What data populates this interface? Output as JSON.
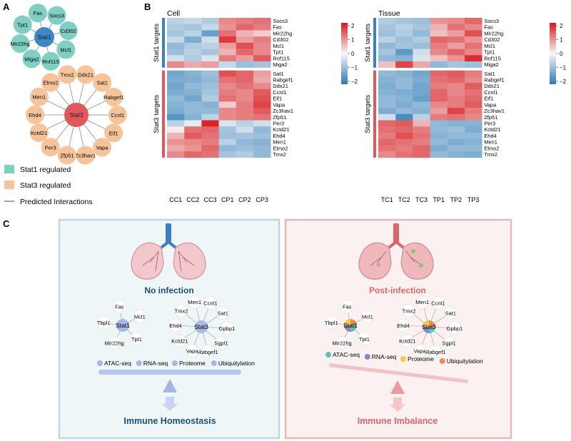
{
  "panel_labels": {
    "a": "A",
    "b": "B",
    "c": "C"
  },
  "network_a": {
    "stat1_hub": "Stat1",
    "stat1_nodes": [
      "Socs3",
      "Cd302",
      "Mcl1",
      "Rnf115",
      "Miga2",
      "Mir22hg",
      "Tpt1",
      "Fas"
    ],
    "stat3_hub": "Stat3",
    "stat3_nodes": [
      "Ddx21",
      "Sat1",
      "Rabgef1",
      "Ccnl1",
      "Eif1",
      "Vapa",
      "Zc3hav1",
      "Zfp51",
      "Per3",
      "Kctd21",
      "Ehd4",
      "Men1",
      "Elmo2",
      "Tmx2"
    ],
    "legend": {
      "stat1_regulated": "Stat1 regulated",
      "stat3_regulated": "Stat3 regulated",
      "predicted_interactions": "Predicted Interactions"
    },
    "colors": {
      "stat1_node": "#7fcfc2",
      "stat1_hub": "#3f86c5",
      "stat3_node": "#f6c49b",
      "stat3_hub": "#e0575c"
    }
  },
  "heatmaps": {
    "row_group_labels": {
      "stat1": "Stat1 targets",
      "stat3": "Stat3 targets"
    },
    "stat1_genes": [
      "Socs3",
      "Fas",
      "Mir22hg",
      "Cd302",
      "Mcl1",
      "Tpt1",
      "Rnf115",
      "Miga2"
    ],
    "stat3_genes": [
      "Sat1",
      "Rabgef1",
      "Ddx21",
      "Ccnl1",
      "Eif1",
      "Vapa",
      "Zc3hav1",
      "Zfp51",
      "Per3",
      "Kctd21",
      "Ehd4",
      "Men1",
      "Elmo2",
      "Tmx2"
    ],
    "colorbar_ticks": [
      "2",
      "1",
      "0",
      "−1",
      "−2"
    ],
    "cell": {
      "title": "Cell",
      "columns": [
        "CC1",
        "CC2",
        "CC3",
        "CP1",
        "CP2",
        "CP3"
      ],
      "values": [
        [
          -0.6,
          -0.5,
          -0.7,
          1.0,
          1.1,
          1.2
        ],
        [
          -0.7,
          -0.8,
          -0.5,
          0.9,
          1.3,
          1.1
        ],
        [
          -0.8,
          -0.6,
          -1.4,
          1.2,
          0.6,
          0.4
        ],
        [
          -0.5,
          -1.2,
          -0.4,
          1.7,
          0.8,
          1.1
        ],
        [
          -1.0,
          -0.7,
          -0.6,
          0.8,
          1.5,
          1.0
        ],
        [
          -0.9,
          -0.6,
          -0.8,
          0.6,
          1.3,
          1.0
        ],
        [
          -0.4,
          -0.7,
          -0.3,
          1.1,
          0.8,
          1.4
        ],
        [
          1.0,
          0.7,
          0.8,
          -0.5,
          -0.9,
          -0.8
        ],
        [
          -1.3,
          -1.1,
          -0.9,
          1.5,
          1.3,
          0.8
        ],
        [
          -1.2,
          -1.2,
          -1.0,
          1.2,
          1.3,
          0.7
        ],
        [
          -1.3,
          -1.0,
          -0.9,
          1.0,
          1.2,
          1.0
        ],
        [
          -1.2,
          -1.1,
          -0.8,
          1.1,
          1.0,
          1.4
        ],
        [
          -1.0,
          -1.3,
          -0.7,
          1.2,
          1.0,
          1.5
        ],
        [
          -1.1,
          -1.0,
          -1.1,
          0.4,
          1.1,
          1.6
        ],
        [
          -1.2,
          -1.0,
          -1.0,
          1.0,
          1.1,
          1.4
        ],
        [
          -1.6,
          -1.1,
          -0.6,
          1.0,
          1.1,
          1.2
        ],
        [
          -0.6,
          -0.2,
          1.9,
          -0.3,
          -0.6,
          -0.4
        ],
        [
          0.1,
          1.2,
          1.3,
          -0.8,
          -0.4,
          -1.0
        ],
        [
          0.6,
          1.4,
          1.2,
          -0.9,
          -0.8,
          -0.9
        ],
        [
          0.9,
          1.0,
          1.1,
          -0.6,
          -1.0,
          -1.1
        ],
        [
          0.7,
          0.9,
          1.3,
          -1.0,
          -0.9,
          -1.0
        ],
        [
          1.0,
          1.3,
          1.2,
          -0.8,
          -0.7,
          -1.0
        ]
      ]
    },
    "tissue": {
      "title": "Tissue",
      "columns": [
        "TC1",
        "TC2",
        "TC3",
        "TP1",
        "TP2",
        "TP3"
      ],
      "values": [
        [
          -0.7,
          -0.8,
          -0.9,
          0.9,
          1.0,
          1.3
        ],
        [
          -0.8,
          -0.6,
          -0.8,
          0.6,
          1.2,
          1.0
        ],
        [
          -0.9,
          -0.7,
          -1.0,
          0.5,
          0.8,
          1.5
        ],
        [
          -0.6,
          -0.9,
          -0.7,
          1.3,
          1.2,
          0.9
        ],
        [
          -1.0,
          -0.8,
          -0.9,
          1.1,
          0.8,
          1.2
        ],
        [
          -0.8,
          -1.5,
          -0.4,
          1.0,
          1.3,
          1.0
        ],
        [
          -1.0,
          -1.1,
          -0.3,
          0.5,
          0.9,
          1.8
        ],
        [
          0.5,
          1.6,
          0.7,
          -1.0,
          -0.8,
          -0.9
        ],
        [
          -1.0,
          -1.1,
          -1.3,
          1.3,
          1.4,
          1.1
        ],
        [
          -1.1,
          -1.0,
          -1.2,
          1.2,
          1.3,
          1.0
        ],
        [
          -1.2,
          -1.0,
          -1.3,
          1.1,
          1.0,
          1.4
        ],
        [
          -1.1,
          -1.2,
          -1.3,
          1.3,
          1.0,
          1.2
        ],
        [
          -1.0,
          -1.1,
          -1.4,
          1.3,
          1.1,
          1.3
        ],
        [
          -1.0,
          -1.2,
          -1.0,
          1.0,
          1.1,
          1.4
        ],
        [
          -1.2,
          -1.0,
          -1.1,
          0.8,
          1.6,
          1.1
        ],
        [
          -0.4,
          -1.7,
          -0.6,
          1.1,
          1.2,
          1.0
        ],
        [
          1.3,
          1.4,
          0.6,
          -1.0,
          -1.1,
          -1.1
        ],
        [
          1.2,
          1.3,
          1.1,
          -1.0,
          -0.9,
          -1.2
        ],
        [
          1.1,
          1.5,
          1.2,
          -1.1,
          -1.0,
          -1.0
        ],
        [
          1.3,
          1.2,
          1.1,
          -1.0,
          -1.2,
          -1.1
        ],
        [
          1.2,
          1.1,
          1.3,
          -1.2,
          -1.0,
          -1.0
        ],
        [
          1.0,
          1.2,
          1.3,
          -1.0,
          -1.1,
          -1.2
        ]
      ]
    }
  },
  "panel_c": {
    "left": {
      "title": "No infection",
      "stat1_hub": "Stat1",
      "stat1_nodes": [
        "Fas",
        "Mcl1",
        "Tpt1",
        "Mir22hg",
        "Tbpl1"
      ],
      "stat3_hub": "Stat3",
      "stat3_nodes": [
        "Men1",
        "Ccnl1",
        "Sat1",
        "Gpbp1",
        "Sgpl1",
        "Rabgef1",
        "Vapa",
        "Kctd21",
        "Ehd4",
        "Tmx2"
      ],
      "legend": [
        "ATAC-seq",
        "RNA-seq",
        "Proteome",
        "Ubiquitylation"
      ],
      "outcome": "Immune Homeostasis",
      "colors": {
        "frame": "#bcd8e0",
        "bg": "#eef6f8",
        "title": "#1f4e79",
        "dot": "#a9b6e6",
        "bar": "#b7c6ee"
      }
    },
    "right": {
      "title": "Post-infection",
      "stat1_hub": "Stat1",
      "stat1_nodes": [
        "Fas",
        "Mcl1",
        "Tpt1",
        "Mir22hg",
        "Tbpl1"
      ],
      "stat3_hub": "Stat3",
      "stat3_nodes": [
        "Men1",
        "Ccnl1",
        "Sat1",
        "Gpbp1",
        "Sgpl1",
        "Rabgef1",
        "Vapa",
        "Kctd21",
        "Ehd4",
        "Tmx2"
      ],
      "legend": [
        "ATAC-seq",
        "RNA-seq",
        "Proteome",
        "Ubiquitylation"
      ],
      "outcome": "Immune Imbalance",
      "colors": {
        "frame": "#e3b9bb",
        "bg": "#fbf1f1",
        "title": "#d9676a",
        "bar": "#f0c4c4",
        "legend_dots": [
          "#5cc2b0",
          "#8c86c6",
          "#f2c94c",
          "#e98a5c"
        ]
      }
    }
  }
}
